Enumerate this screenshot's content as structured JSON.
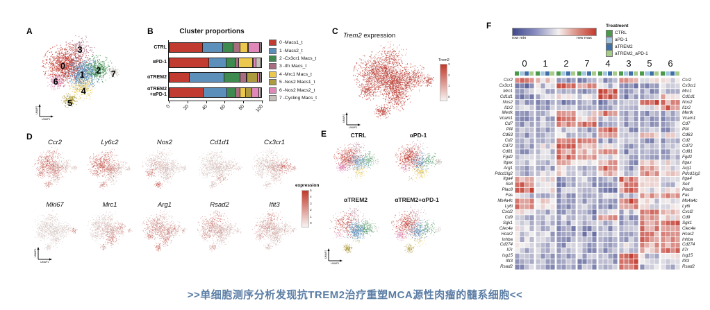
{
  "panel_labels": {
    "A": "A",
    "B": "B",
    "C": "C",
    "D": "D",
    "E": "E",
    "F": "F"
  },
  "axes": {
    "x": "UMAP1",
    "y": "UMAP2"
  },
  "caption": {
    "text": ">>单细胞测序分析发现抗TREM2治疗重塑MCA源性肉瘤的髓系细胞<<",
    "color": "#5b7da5"
  },
  "clusters": [
    {
      "id": 0,
      "label": "0 -Macs1_t",
      "color": "#c13b31"
    },
    {
      "id": 1,
      "label": "1 -Macs2_t",
      "color": "#5d8fbb"
    },
    {
      "id": 2,
      "label": "2 -Cx3cr1 Macs_t",
      "color": "#3f8b4f"
    },
    {
      "id": 3,
      "label": "3 -Ifn Macs_t",
      "color": "#a96d80"
    },
    {
      "id": 4,
      "label": "4 -Mrc1 Macs_t",
      "color": "#ecc84f"
    },
    {
      "id": 5,
      "label": "5 -Nos2 Macs1_t",
      "color": "#ad9b3f"
    },
    {
      "id": 6,
      "label": "6 -Nos2 Macs2_t",
      "color": "#e088b8"
    },
    {
      "id": 7,
      "label": "7 -Cycling Macs_t",
      "color": "#c6bfba"
    }
  ],
  "treatments": [
    {
      "label": "CTRL",
      "color": "#4a9a4a"
    },
    {
      "label": "aPD-1",
      "color": "#a3c6e0"
    },
    {
      "label": "aTREM2",
      "color": "#3e6fa6"
    },
    {
      "label": "aTREM2_aPD-1",
      "color": "#a6cb88"
    }
  ],
  "panelC": {
    "title_gene": "Trem2",
    "title_rest": " expression",
    "colorbar_title": "Trem2",
    "colorbar_ticks": [
      "3",
      "2",
      "1",
      "0"
    ]
  },
  "panelD": {
    "legend_title": "expression",
    "legend_ticks": [
      "5",
      "4",
      "3",
      "2",
      "1",
      "0"
    ]
  },
  "panelE": {
    "titles": [
      "CTRL",
      "αPD-1",
      "αTREM2",
      "αTREM2+αPD-1"
    ]
  },
  "panelF": {
    "scale_min_label": "row min",
    "scale_max_label": "row max",
    "legend_title": "Treatment"
  },
  "chart_data": [
    {
      "type": "bar",
      "id": "cluster_proportions",
      "title": "Cluster proportions",
      "orientation": "horizontal_stacked",
      "categories": [
        "CTRL",
        "αPD-1",
        "αTREM2",
        "αTREM2\n+αPD-1"
      ],
      "series": [
        {
          "name": "0 -Macs1_t",
          "color": "#c13b31",
          "values": [
            36,
            43,
            22,
            37
          ]
        },
        {
          "name": "1 -Macs2_t",
          "color": "#5d8fbb",
          "values": [
            22,
            19,
            38,
            26
          ]
        },
        {
          "name": "2 -Cx3cr1 Macs_t",
          "color": "#3f8b4f",
          "values": [
            12,
            10,
            17,
            9
          ]
        },
        {
          "name": "3 -Ifn Macs_t",
          "color": "#a96d80",
          "values": [
            7,
            4,
            7,
            5.5
          ]
        },
        {
          "name": "4 -Mrc1 Macs_t",
          "color": "#ecc84f",
          "values": [
            9,
            15,
            1,
            6
          ]
        },
        {
          "name": "5 -Nos2 Macs1_t",
          "color": "#ad9b3f",
          "values": [
            0.5,
            1,
            11,
            7
          ]
        },
        {
          "name": "6 -Nos2 Macs2_t",
          "color": "#e088b8",
          "values": [
            12,
            3,
            2.5,
            7.5
          ]
        },
        {
          "name": "7 -Cycling Macs_t",
          "color": "#c6bfba",
          "values": [
            1.5,
            5,
            1.5,
            2
          ]
        }
      ],
      "xlim": [
        0,
        100
      ],
      "xticks": [
        0,
        20,
        40,
        60,
        80,
        100
      ]
    },
    {
      "type": "scatter",
      "id": "umap_overview",
      "description": "UMAP of myeloid cells colored by cluster 0-7",
      "cluster_weights": [
        34,
        26,
        12,
        6,
        8,
        5,
        6,
        2.5
      ]
    },
    {
      "type": "scatter",
      "id": "expression_umaps",
      "description": "Feature plots; expr = per-cluster relative expression (clusters 0-7)",
      "genes": [
        {
          "name": "Trem2",
          "expr": [
            0.85,
            0.85,
            0.8,
            0.8,
            0.85,
            0.85,
            0.85,
            0.8
          ]
        },
        {
          "name": "Ccr2",
          "expr": [
            0.75,
            0.55,
            0.25,
            0.7,
            0.35,
            0.55,
            0.65,
            0.25
          ]
        },
        {
          "name": "Ly6c2",
          "expr": [
            0.8,
            0.55,
            0.2,
            0.75,
            0.3,
            0.6,
            0.65,
            0.25
          ]
        },
        {
          "name": "Nos2",
          "expr": [
            0.3,
            0.18,
            0.12,
            0.2,
            0.15,
            0.85,
            0.75,
            0.12
          ]
        },
        {
          "name": "Cd1d1",
          "expr": [
            0.12,
            0.18,
            0.25,
            0.12,
            0.45,
            0.15,
            0.12,
            0.15
          ]
        },
        {
          "name": "Cx3cr1",
          "expr": [
            0.18,
            0.35,
            0.8,
            0.2,
            0.3,
            0.15,
            0.15,
            0.65
          ]
        },
        {
          "name": "Mki67",
          "expr": [
            0.07,
            0.07,
            0.1,
            0.08,
            0.08,
            0.08,
            0.07,
            0.8
          ]
        },
        {
          "name": "Mrc1",
          "expr": [
            0.2,
            0.35,
            0.5,
            0.2,
            0.75,
            0.3,
            0.25,
            0.3
          ]
        },
        {
          "name": "Arg1",
          "expr": [
            0.55,
            0.5,
            0.4,
            0.35,
            0.75,
            0.8,
            0.55,
            0.3
          ]
        },
        {
          "name": "Rsad2",
          "expr": [
            0.5,
            0.3,
            0.25,
            0.85,
            0.25,
            0.4,
            0.5,
            0.2
          ]
        },
        {
          "name": "Ifit3",
          "expr": [
            0.45,
            0.25,
            0.22,
            0.85,
            0.2,
            0.3,
            0.4,
            0.2
          ]
        }
      ]
    },
    {
      "type": "heatmap",
      "id": "gene_heatmap",
      "col_groups": [
        "0",
        "1",
        "2",
        "7",
        "4",
        "3",
        "5",
        "6"
      ],
      "cols_per_group": 4,
      "col_annotation_cycle": [
        "CTRL",
        "aPD-1",
        "aTREM2",
        "aTREM2_aPD-1"
      ],
      "palette": {
        "low": "#41498c",
        "mid": "#f4f1f0",
        "high": "#c33a2e"
      },
      "scale": {
        "min": "row min",
        "max": "row max"
      },
      "rows": [
        {
          "name": "Ccr2",
          "blocks": [
            0.85,
            0.55,
            0.2,
            0.2,
            0.3,
            0.75,
            0.5,
            0.45
          ]
        },
        {
          "name": "Cx3cr1",
          "blocks": [
            0.2,
            0.4,
            0.9,
            0.75,
            0.35,
            0.2,
            0.3,
            0.35
          ]
        },
        {
          "name": "Mrc1",
          "blocks": [
            0.3,
            0.35,
            0.3,
            0.3,
            0.9,
            0.25,
            0.3,
            0.3
          ]
        },
        {
          "name": "Cd1d1",
          "blocks": [
            0.25,
            0.4,
            0.55,
            0.4,
            0.85,
            0.25,
            0.3,
            0.6
          ]
        },
        {
          "name": "Nos2",
          "blocks": [
            0.3,
            0.3,
            0.25,
            0.3,
            0.25,
            0.3,
            0.9,
            0.75
          ]
        },
        {
          "name": "Il1r2",
          "blocks": [
            0.4,
            0.35,
            0.3,
            0.3,
            0.35,
            0.3,
            0.5,
            0.85
          ]
        },
        {
          "name": "Mertk",
          "blocks": [
            0.25,
            0.4,
            0.7,
            0.5,
            0.8,
            0.25,
            0.3,
            0.35
          ]
        },
        {
          "name": "Vcam1",
          "blocks": [
            0.25,
            0.35,
            0.85,
            0.6,
            0.4,
            0.3,
            0.25,
            0.3
          ]
        },
        {
          "name": "Cd7",
          "blocks": [
            0.3,
            0.4,
            0.75,
            0.8,
            0.3,
            0.3,
            0.3,
            0.35
          ]
        },
        {
          "name": "Pf4",
          "blocks": [
            0.3,
            0.35,
            0.4,
            0.3,
            0.9,
            0.3,
            0.35,
            0.3
          ]
        },
        {
          "name": "Cd63",
          "blocks": [
            0.3,
            0.35,
            0.4,
            0.35,
            0.8,
            0.3,
            0.7,
            0.5
          ]
        },
        {
          "name": "Cd2",
          "blocks": [
            0.3,
            0.4,
            0.7,
            0.85,
            0.3,
            0.35,
            0.3,
            0.3
          ]
        },
        {
          "name": "Cd72",
          "blocks": [
            0.3,
            0.45,
            0.85,
            0.7,
            0.5,
            0.3,
            0.3,
            0.4
          ]
        },
        {
          "name": "Cd81",
          "blocks": [
            0.3,
            0.4,
            0.75,
            0.6,
            0.8,
            0.25,
            0.3,
            0.3
          ]
        },
        {
          "name": "Fgd2",
          "blocks": [
            0.3,
            0.45,
            0.8,
            0.7,
            0.5,
            0.3,
            0.3,
            0.35
          ]
        },
        {
          "name": "Itgax",
          "blocks": [
            0.35,
            0.4,
            0.6,
            0.5,
            0.7,
            0.3,
            0.6,
            0.5
          ]
        },
        {
          "name": "Arg1",
          "blocks": [
            0.3,
            0.35,
            0.45,
            0.3,
            0.8,
            0.3,
            0.75,
            0.5
          ]
        },
        {
          "name": "Pdcd1lg2",
          "blocks": [
            0.35,
            0.4,
            0.5,
            0.4,
            0.6,
            0.35,
            0.7,
            0.6
          ]
        },
        {
          "name": "Itga4",
          "blocks": [
            0.7,
            0.5,
            0.3,
            0.35,
            0.3,
            0.8,
            0.5,
            0.45
          ]
        },
        {
          "name": "Sell",
          "blocks": [
            0.8,
            0.45,
            0.25,
            0.3,
            0.25,
            0.75,
            0.55,
            0.4
          ]
        },
        {
          "name": "Plac8",
          "blocks": [
            0.85,
            0.5,
            0.3,
            0.3,
            0.25,
            0.8,
            0.5,
            0.45
          ]
        },
        {
          "name": "Fas",
          "blocks": [
            0.4,
            0.35,
            0.3,
            0.3,
            0.35,
            0.4,
            0.7,
            0.75
          ]
        },
        {
          "name": "Ms4a4c",
          "blocks": [
            0.75,
            0.5,
            0.3,
            0.3,
            0.25,
            0.85,
            0.45,
            0.5
          ]
        },
        {
          "name": "Ly6i",
          "blocks": [
            0.8,
            0.5,
            0.3,
            0.3,
            0.25,
            0.8,
            0.5,
            0.45
          ]
        },
        {
          "name": "Cxcl2",
          "blocks": [
            0.45,
            0.35,
            0.3,
            0.25,
            0.4,
            0.35,
            0.75,
            0.7
          ]
        },
        {
          "name": "Cd9",
          "blocks": [
            0.3,
            0.35,
            0.35,
            0.3,
            0.75,
            0.3,
            0.7,
            0.5
          ]
        },
        {
          "name": "Sgk1",
          "blocks": [
            0.35,
            0.35,
            0.3,
            0.3,
            0.4,
            0.3,
            0.75,
            0.8
          ]
        },
        {
          "name": "Clec4e",
          "blocks": [
            0.45,
            0.4,
            0.25,
            0.25,
            0.3,
            0.4,
            0.8,
            0.7
          ]
        },
        {
          "name": "Hcar2",
          "blocks": [
            0.4,
            0.35,
            0.3,
            0.25,
            0.35,
            0.35,
            0.75,
            0.8
          ]
        },
        {
          "name": "Inhba",
          "blocks": [
            0.4,
            0.4,
            0.3,
            0.25,
            0.3,
            0.35,
            0.8,
            0.75
          ]
        },
        {
          "name": "Cd274",
          "blocks": [
            0.4,
            0.35,
            0.3,
            0.3,
            0.35,
            0.45,
            0.7,
            0.75
          ]
        },
        {
          "name": "Il7r",
          "blocks": [
            0.35,
            0.4,
            0.3,
            0.3,
            0.3,
            0.4,
            0.6,
            0.8
          ]
        },
        {
          "name": "Isg15",
          "blocks": [
            0.4,
            0.35,
            0.3,
            0.3,
            0.3,
            0.9,
            0.4,
            0.45
          ]
        },
        {
          "name": "Ifit3",
          "blocks": [
            0.35,
            0.3,
            0.3,
            0.3,
            0.3,
            0.9,
            0.35,
            0.4
          ]
        },
        {
          "name": "Rsad2",
          "blocks": [
            0.3,
            0.3,
            0.3,
            0.3,
            0.3,
            0.9,
            0.35,
            0.4
          ]
        }
      ]
    }
  ]
}
